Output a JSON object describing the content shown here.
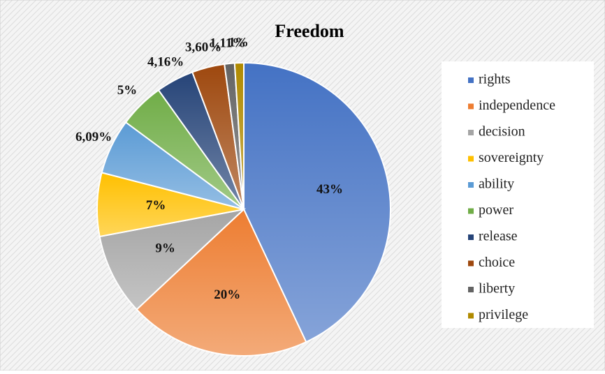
{
  "chart_data": {
    "type": "pie",
    "title": "Freedom",
    "categories": [
      "rights",
      "independence",
      "decision",
      "sovereignty",
      "ability",
      "power",
      "release",
      "choice",
      "liberty",
      "privilege"
    ],
    "values": [
      43,
      20,
      9,
      7,
      6.09,
      5,
      4.16,
      3.6,
      1.11,
      1
    ],
    "value_labels": [
      "43%",
      "20%",
      "9%",
      "7%",
      "6,09%",
      "5%",
      "4,16%",
      "3,60%",
      "1,11%",
      "1%"
    ],
    "colors": [
      "#4472c4",
      "#ed7d31",
      "#a5a5a5",
      "#ffc000",
      "#5b9bd5",
      "#70ad47",
      "#264478",
      "#9e480e",
      "#636363",
      "#b08a00"
    ],
    "legend": "right"
  }
}
